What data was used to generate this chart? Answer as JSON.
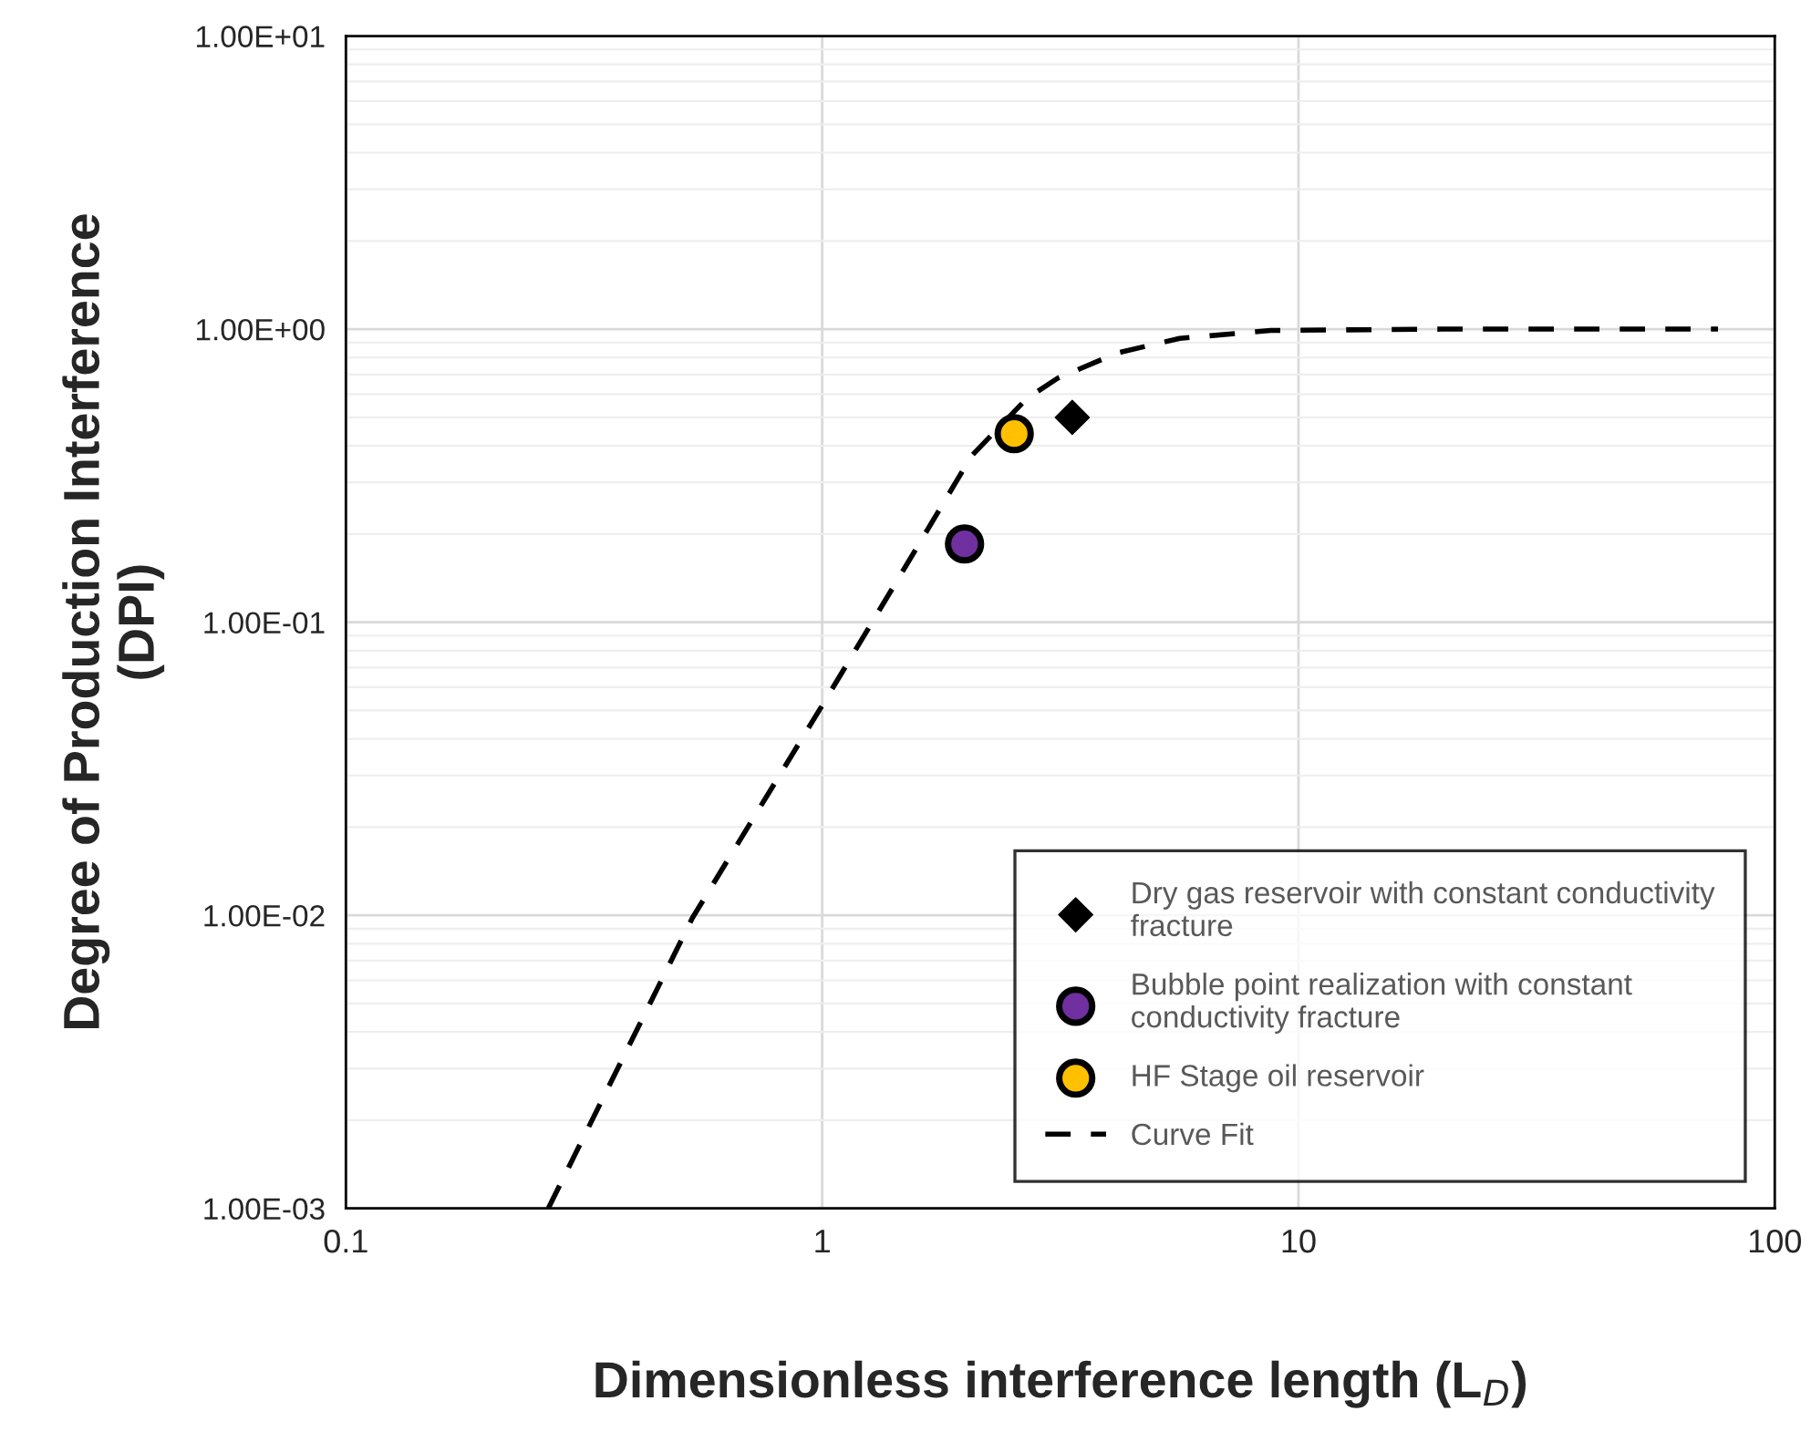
{
  "chart_data": {
    "type": "scatter",
    "xlabel": "Dimensionless interference length (L$_{D}$)",
    "ylabel": "Degree of Production Interference\n(DPI)",
    "log": "xy",
    "xlim": [
      0.1,
      100
    ],
    "ylim": [
      0.001,
      10
    ],
    "xticks": [
      0.1,
      1,
      10,
      100
    ],
    "yticks": [
      {
        "value": 0.001,
        "label": "1.00E-03"
      },
      {
        "value": 0.01,
        "label": "1.00E-02"
      },
      {
        "value": 0.1,
        "label": "1.00E-01"
      },
      {
        "value": 1,
        "label": "1.00E+00"
      },
      {
        "value": 10,
        "label": "1.00E+01"
      }
    ],
    "grid": true,
    "legend": "bottom right",
    "series": [
      {
        "name": "Dry gas reservoir with constant conductivity fracture",
        "marker": "diamond",
        "color": "#000000",
        "x": [
          3.35
        ],
        "values": [
          0.5
        ]
      },
      {
        "name": "Bubble point realization with constant conductivity fracture",
        "marker": "circle",
        "color": "#7030a0",
        "x": [
          1.99
        ],
        "values": [
          0.185
        ]
      },
      {
        "name": "HF Stage oil reservoir",
        "marker": "circle",
        "color": "#ffc000",
        "x": [
          2.53
        ],
        "values": [
          0.44
        ]
      },
      {
        "name": "Curve Fit",
        "type": "line",
        "line_style": "dashed",
        "marker": "none",
        "color": "#000000",
        "x": [
          0.266,
          0.534,
          1,
          1.5,
          2.06,
          2.69,
          3.12,
          4.17,
          5.63,
          8.75,
          20,
          40,
          76
        ],
        "values": [
          0.001,
          0.0098,
          0.052,
          0.156,
          0.37,
          0.58,
          0.68,
          0.83,
          0.93,
          0.99,
          1.0,
          1.0,
          1.0
        ]
      }
    ]
  }
}
